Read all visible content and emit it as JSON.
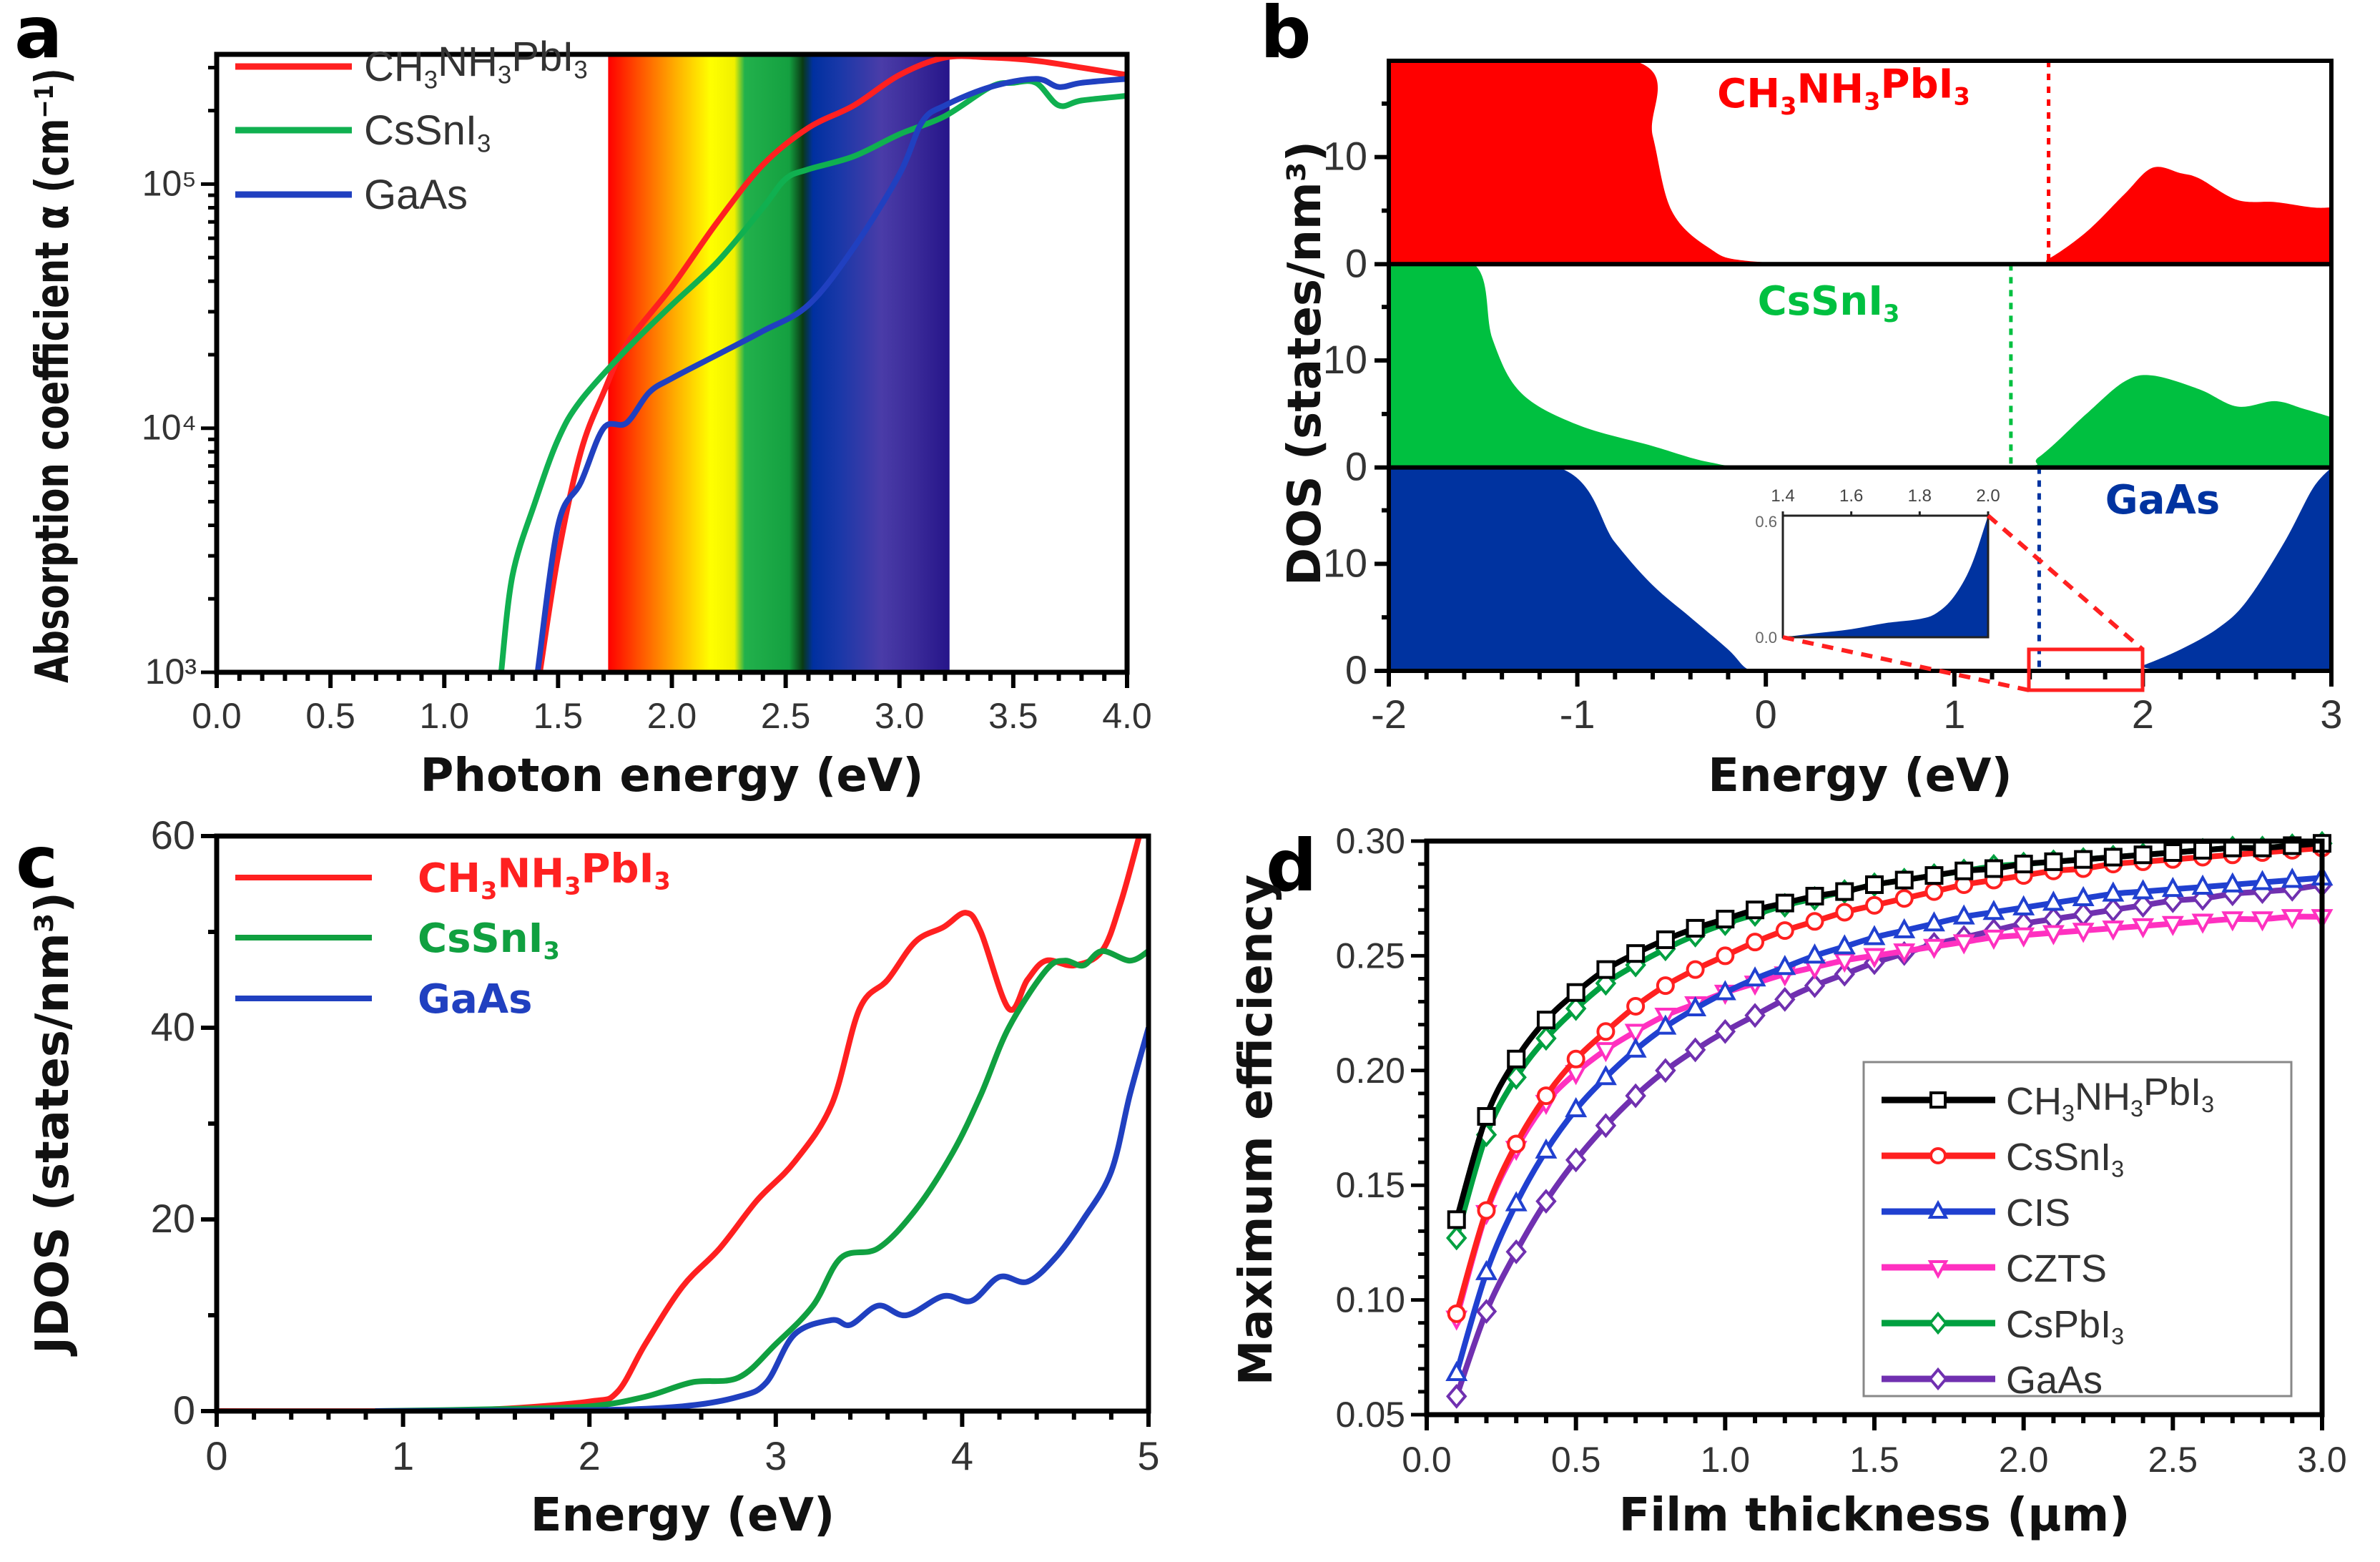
{
  "chart_data": [
    {
      "panel": "a",
      "type": "line",
      "xlabel": "Photon energy (eV)",
      "ylabel": "Absorption coefficient α (cm⁻¹)",
      "xlim": [
        0,
        4
      ],
      "ylim": [
        1000,
        340000
      ],
      "yscale": "log",
      "xticks": [
        "0.0",
        "0.5",
        "1.0",
        "1.5",
        "2.0",
        "2.5",
        "3.0",
        "3.5",
        "4.0"
      ],
      "yticks": [
        {
          "value": 1000,
          "label": "10³"
        },
        {
          "value": 10000,
          "label": "10⁴"
        },
        {
          "value": 100000,
          "label": "10⁵"
        }
      ],
      "visible_spectrum_band_eV": [
        1.72,
        3.22
      ],
      "spectrum_colors": [
        "#ff0000",
        "#ff5a00",
        "#ffb000",
        "#ffff00",
        "#f0f000",
        "#22b14c",
        "#14a040",
        "#0a3a14",
        "#0030a0",
        "#1a38a8",
        "#4a3ca8",
        "#3a2a98",
        "#26158a"
      ],
      "legend_position": "top-left",
      "series": [
        {
          "name": "CH3NH3PbI3",
          "color": "#ff2020",
          "x": [
            1.42,
            1.5,
            1.6,
            1.7,
            1.8,
            2.0,
            2.2,
            2.4,
            2.6,
            2.8,
            3.0,
            3.2,
            3.4,
            3.6,
            3.8,
            4.0
          ],
          "y": [
            1000,
            3000,
            8000,
            14000,
            22000,
            38000,
            70000,
            120000,
            170000,
            210000,
            280000,
            330000,
            330000,
            320000,
            300000,
            280000
          ]
        },
        {
          "name": "CsSnI3",
          "color": "#10b050",
          "x": [
            1.25,
            1.3,
            1.4,
            1.5,
            1.6,
            1.8,
            2.0,
            2.2,
            2.4,
            2.5,
            2.6,
            2.8,
            3.0,
            3.2,
            3.4,
            3.5,
            3.6,
            3.7,
            3.8,
            4.0
          ],
          "y": [
            1000,
            2500,
            5000,
            9000,
            13000,
            21000,
            32000,
            48000,
            80000,
            105000,
            115000,
            130000,
            160000,
            190000,
            250000,
            260000,
            260000,
            210000,
            220000,
            230000
          ]
        },
        {
          "name": "GaAs",
          "color": "#2040c0",
          "x": [
            1.41,
            1.5,
            1.6,
            1.7,
            1.8,
            1.9,
            2.0,
            2.2,
            2.4,
            2.6,
            2.8,
            3.0,
            3.1,
            3.2,
            3.4,
            3.6,
            3.7,
            3.8,
            4.0
          ],
          "y": [
            1000,
            4000,
            6000,
            10000,
            10500,
            14000,
            16000,
            20000,
            25000,
            32000,
            55000,
            110000,
            180000,
            210000,
            250000,
            270000,
            250000,
            260000,
            270000
          ]
        }
      ]
    },
    {
      "panel": "b",
      "type": "area",
      "xlabel": "Energy (eV)",
      "ylabel": "DOS (states/nm³)",
      "xlim": [
        -2,
        3
      ],
      "ylim": [
        0,
        19
      ],
      "xticks": [
        "-2",
        "-1",
        "0",
        "1",
        "2",
        "3"
      ],
      "yticks": [
        "0",
        "10"
      ],
      "series": [
        {
          "name": "CH3NH3PbI3",
          "color": "#ff0000",
          "gap_line_eV": 1.5,
          "x": [
            -2,
            -0.7,
            -0.6,
            -0.5,
            -0.3,
            -0.1,
            0.5,
            1.4,
            1.5,
            1.7,
            1.9,
            2.05,
            2.2,
            2.3,
            2.5,
            2.7,
            2.9,
            3
          ],
          "y": [
            19,
            19,
            12,
            5,
            1.5,
            0.3,
            0,
            0.1,
            0.5,
            3,
            6.5,
            9,
            8.5,
            8,
            6,
            5.8,
            5.3,
            5.3
          ]
        },
        {
          "name": "CsSnI3",
          "color": "#00c040",
          "gap_line_eV": 1.3,
          "x": [
            -2,
            -1.55,
            -1.45,
            -1.3,
            -1,
            -0.6,
            -0.3,
            0,
            1.3,
            1.45,
            1.7,
            1.9,
            2.05,
            2.3,
            2.5,
            2.7,
            2.85,
            3
          ],
          "y": [
            19,
            19,
            12,
            7,
            4,
            2,
            0.5,
            0.1,
            0.1,
            1,
            5,
            8,
            8.6,
            7.3,
            5.7,
            6.2,
            5.5,
            4.7
          ]
        },
        {
          "name": "GaAs",
          "color": "#0033a0",
          "gap_line_eV": 1.45,
          "x": [
            -2,
            -1.1,
            -0.8,
            -0.6,
            -0.4,
            -0.2,
            -0.1,
            0,
            1.9,
            2.0,
            2.2,
            2.4,
            2.55,
            2.75,
            2.9,
            3
          ],
          "y": [
            19,
            19,
            12,
            8,
            5,
            2,
            0.2,
            0,
            0,
            0.5,
            2,
            4,
            6.5,
            12,
            17,
            19
          ]
        }
      ],
      "inset": {
        "xlim": [
          1.4,
          2.0
        ],
        "ylim": [
          0,
          0.6
        ],
        "xticks": [
          "1.4",
          "1.6",
          "1.8",
          "2.0"
        ],
        "yticks": [
          "0.0",
          "0.6"
        ],
        "x": [
          1.4,
          1.5,
          1.6,
          1.7,
          1.8,
          1.85,
          1.9,
          1.95,
          2.0
        ],
        "y": [
          0,
          0.02,
          0.04,
          0.07,
          0.09,
          0.12,
          0.2,
          0.35,
          0.6
        ]
      }
    },
    {
      "panel": "c",
      "type": "line",
      "xlabel": "Energy (eV)",
      "ylabel": "JDOS (states/nm³)",
      "xlim": [
        0,
        5
      ],
      "ylim": [
        0,
        60
      ],
      "xticks": [
        "0",
        "1",
        "2",
        "3",
        "4",
        "5"
      ],
      "yticks": [
        "0",
        "20",
        "40",
        "60"
      ],
      "legend_position": "top-left",
      "series": [
        {
          "name": "CH3NH3PbI3",
          "color": "#ff2020",
          "x": [
            0,
            1,
            1.5,
            2,
            2.15,
            2.3,
            2.5,
            2.7,
            2.9,
            3.1,
            3.3,
            3.45,
            3.6,
            3.75,
            3.9,
            4.02,
            4.1,
            4.25,
            4.35,
            4.45,
            4.6,
            4.75,
            4.85,
            4.95
          ],
          "y": [
            0,
            0,
            0.2,
            1,
            2,
            7,
            13,
            17,
            22,
            26,
            32,
            42,
            45,
            49,
            50.5,
            52,
            50,
            42,
            45,
            47,
            46.5,
            48,
            53,
            60
          ]
        },
        {
          "name": "CsSnI3",
          "color": "#10a040",
          "x": [
            0.85,
            1.5,
            2,
            2.3,
            2.55,
            2.8,
            3.0,
            3.2,
            3.35,
            3.55,
            3.75,
            3.95,
            4.1,
            4.25,
            4.45,
            4.55,
            4.65,
            4.75,
            4.9,
            5
          ],
          "y": [
            0,
            0.2,
            0.5,
            1.5,
            3,
            3.5,
            7,
            11,
            16,
            17,
            21,
            27,
            33,
            40,
            46,
            47,
            46.5,
            48,
            47,
            48
          ]
        },
        {
          "name": "GaAs",
          "color": "#2040c0",
          "x": [
            0.85,
            2,
            2.5,
            2.8,
            2.95,
            3.1,
            3.3,
            3.4,
            3.55,
            3.7,
            3.9,
            4.05,
            4.2,
            4.35,
            4.5,
            4.65,
            4.8,
            4.9,
            5
          ],
          "y": [
            0,
            0.1,
            0.5,
            1.5,
            3,
            8,
            9.5,
            9,
            11,
            10,
            12,
            11.5,
            14,
            13.5,
            16,
            20,
            25,
            33,
            40
          ]
        }
      ]
    },
    {
      "panel": "d",
      "type": "line",
      "xlabel": "Film thickness (µm)",
      "ylabel": "Maximum efficiency",
      "xlim": [
        0,
        3
      ],
      "ylim": [
        0.05,
        0.3
      ],
      "xticks": [
        "0.0",
        "0.5",
        "1.0",
        "1.5",
        "2.0",
        "2.5",
        "3.0"
      ],
      "yticks": [
        "0.05",
        "0.10",
        "0.15",
        "0.20",
        "0.25",
        "0.30"
      ],
      "legend_position": "bottom-right",
      "x": [
        0.1,
        0.2,
        0.3,
        0.4,
        0.5,
        0.6,
        0.7,
        0.8,
        0.9,
        1.0,
        1.1,
        1.2,
        1.3,
        1.4,
        1.5,
        1.6,
        1.7,
        1.8,
        1.9,
        2.0,
        2.1,
        2.2,
        2.3,
        2.4,
        2.5,
        2.6,
        2.7,
        2.8,
        2.9,
        3.0
      ],
      "series": [
        {
          "name": "CH3NH3PbI3",
          "color": "#000000",
          "marker": "square",
          "y": [
            0.135,
            0.18,
            0.205,
            0.222,
            0.234,
            0.244,
            0.251,
            0.257,
            0.262,
            0.266,
            0.27,
            0.273,
            0.276,
            0.278,
            0.281,
            0.283,
            0.285,
            0.287,
            0.288,
            0.29,
            0.291,
            0.292,
            0.293,
            0.294,
            0.295,
            0.296,
            0.297,
            0.297,
            0.298,
            0.299
          ]
        },
        {
          "name": "CsSnI3",
          "color": "#ff2020",
          "marker": "circle",
          "y": [
            0.094,
            0.139,
            0.168,
            0.189,
            0.205,
            0.217,
            0.228,
            0.237,
            0.244,
            0.25,
            0.256,
            0.261,
            0.265,
            0.269,
            0.272,
            0.275,
            0.278,
            0.281,
            0.283,
            0.285,
            0.287,
            0.288,
            0.29,
            0.291,
            0.292,
            0.293,
            0.294,
            0.295,
            0.296,
            0.297
          ]
        },
        {
          "name": "CIS",
          "color": "#2040d0",
          "marker": "triangle-up",
          "y": [
            0.068,
            0.112,
            0.142,
            0.165,
            0.183,
            0.197,
            0.209,
            0.219,
            0.227,
            0.234,
            0.24,
            0.245,
            0.25,
            0.254,
            0.258,
            0.261,
            0.264,
            0.267,
            0.269,
            0.271,
            0.273,
            0.275,
            0.277,
            0.278,
            0.279,
            0.28,
            0.281,
            0.282,
            0.283,
            0.284
          ]
        },
        {
          "name": "CZTS",
          "color": "#ff30c0",
          "marker": "triangle-down",
          "y": [
            0.092,
            0.138,
            0.166,
            0.186,
            0.199,
            0.209,
            0.217,
            0.224,
            0.229,
            0.234,
            0.238,
            0.242,
            0.245,
            0.248,
            0.25,
            0.252,
            0.254,
            0.256,
            0.258,
            0.259,
            0.26,
            0.261,
            0.262,
            0.263,
            0.264,
            0.265,
            0.266,
            0.266,
            0.267,
            0.267
          ]
        },
        {
          "name": "CsPbI3",
          "color": "#00a040",
          "marker": "diamond",
          "y": [
            0.127,
            0.172,
            0.197,
            0.214,
            0.227,
            0.238,
            0.246,
            0.253,
            0.259,
            0.264,
            0.268,
            0.272,
            0.275,
            0.278,
            0.281,
            0.283,
            0.285,
            0.287,
            0.289,
            0.29,
            0.291,
            0.292,
            0.293,
            0.294,
            0.295,
            0.296,
            0.297,
            0.297,
            0.298,
            0.299
          ]
        },
        {
          "name": "GaAs",
          "color": "#7030b0",
          "marker": "diamond",
          "y": [
            0.058,
            0.095,
            0.121,
            0.143,
            0.161,
            0.176,
            0.189,
            0.2,
            0.209,
            0.217,
            0.224,
            0.231,
            0.237,
            0.242,
            0.247,
            0.251,
            0.255,
            0.258,
            0.261,
            0.264,
            0.266,
            0.268,
            0.27,
            0.272,
            0.274,
            0.275,
            0.277,
            0.278,
            0.279,
            0.281
          ]
        }
      ]
    }
  ]
}
